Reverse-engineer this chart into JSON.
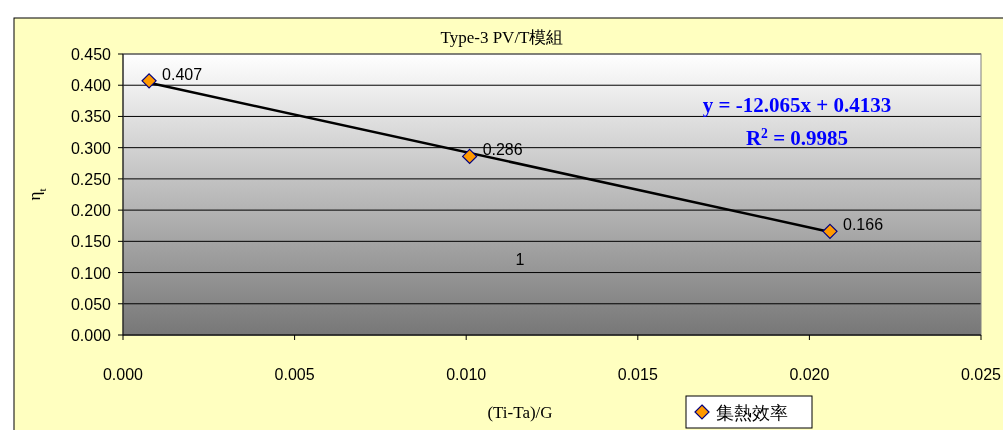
{
  "chart_data": {
    "type": "scatter",
    "title": "Type-3 PV/T模組",
    "xlabel": "(Ti-Ta)/G",
    "ylabel": "η$_{t}$",
    "x": [
      0.00076,
      0.0101,
      0.0206
    ],
    "series": [
      {
        "name": "集熱效率",
        "color": "#ff9900",
        "values": [
          0.407,
          0.286,
          0.166
        ],
        "value_labels": [
          "0.407",
          "0.286",
          "0.166"
        ],
        "marker": "diamond"
      },
      {
        "type": "line",
        "color": "#000000",
        "x": [
          0.00076,
          0.0206
        ],
        "values": [
          0.404,
          0.165
        ],
        "marker": "none"
      }
    ],
    "annotations": [
      "y = -12.065x + 0.4133",
      "R$^{2}$ = 0.9985",
      "1"
    ],
    "xlim": [
      0,
      0.025
    ],
    "xticks": [
      {
        "value": 0,
        "label": "0.000"
      },
      {
        "value": 0.005,
        "label": "0.005"
      },
      {
        "value": 0.01,
        "label": "0.010"
      },
      {
        "value": 0.015,
        "label": "0.015"
      },
      {
        "value": 0.02,
        "label": "0.020"
      },
      {
        "value": 0.025,
        "label": "0.025"
      }
    ],
    "ylim": [
      0,
      0.45
    ],
    "yticks": [
      {
        "value": 0,
        "label": "0.000"
      },
      {
        "value": 0.05,
        "label": "0.050"
      },
      {
        "value": 0.1,
        "label": "0.100"
      },
      {
        "value": 0.15,
        "label": "0.150"
      },
      {
        "value": 0.2,
        "label": "0.200"
      },
      {
        "value": 0.25,
        "label": "0.250"
      },
      {
        "value": 0.3,
        "label": "0.300"
      },
      {
        "value": 0.35,
        "label": "0.350"
      },
      {
        "value": 0.4,
        "label": "0.400"
      },
      {
        "value": 0.45,
        "label": "0.450"
      }
    ],
    "grid": "y",
    "legend": "bottom"
  }
}
